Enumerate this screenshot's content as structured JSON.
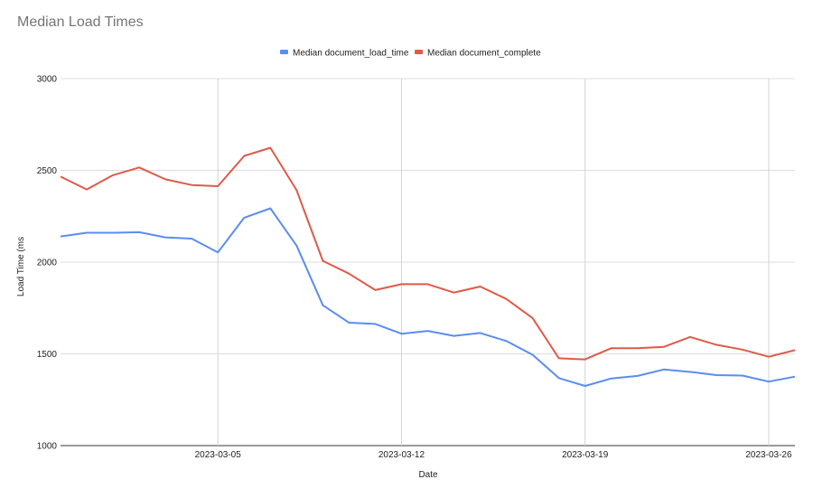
{
  "chart_data": {
    "type": "line",
    "title": "Median Load Times",
    "xlabel": "Date",
    "ylabel": "Load Time (ms",
    "ylim": [
      1000,
      3000
    ],
    "yticks": [
      "1000",
      "1500",
      "2000",
      "2500",
      "3000"
    ],
    "xlim": [
      "2023-02-27",
      "2023-03-27"
    ],
    "xticks": [
      "2023-03-05",
      "2023-03-12",
      "2023-03-19",
      "2023-03-26"
    ],
    "grid": true,
    "legend_position": "top",
    "x": [
      "2023-02-27",
      "2023-02-28",
      "2023-03-01",
      "2023-03-02",
      "2023-03-03",
      "2023-03-04",
      "2023-03-05",
      "2023-03-06",
      "2023-03-07",
      "2023-03-08",
      "2023-03-09",
      "2023-03-10",
      "2023-03-11",
      "2023-03-12",
      "2023-03-13",
      "2023-03-14",
      "2023-03-15",
      "2023-03-16",
      "2023-03-17",
      "2023-03-18",
      "2023-03-19",
      "2023-03-20",
      "2023-03-21",
      "2023-03-22",
      "2023-03-23",
      "2023-03-24",
      "2023-03-25",
      "2023-03-26",
      "2023-03-27"
    ],
    "series": [
      {
        "name": "Median document_load_time",
        "color": "#5b8def",
        "values": [
          2140,
          2160,
          2160,
          2163,
          2135,
          2128,
          2053,
          2242,
          2293,
          2090,
          1765,
          1670,
          1663,
          1610,
          1625,
          1598,
          1614,
          1570,
          1495,
          1368,
          1325,
          1366,
          1380,
          1415,
          1402,
          1384,
          1382,
          1349,
          1376
        ]
      },
      {
        "name": "Median document_complete",
        "color": "#df5a49",
        "values": [
          2466,
          2396,
          2474,
          2516,
          2451,
          2420,
          2414,
          2579,
          2623,
          2392,
          2007,
          1937,
          1848,
          1880,
          1880,
          1834,
          1867,
          1799,
          1695,
          1476,
          1470,
          1531,
          1531,
          1538,
          1592,
          1550,
          1523,
          1484,
          1520
        ]
      }
    ]
  }
}
